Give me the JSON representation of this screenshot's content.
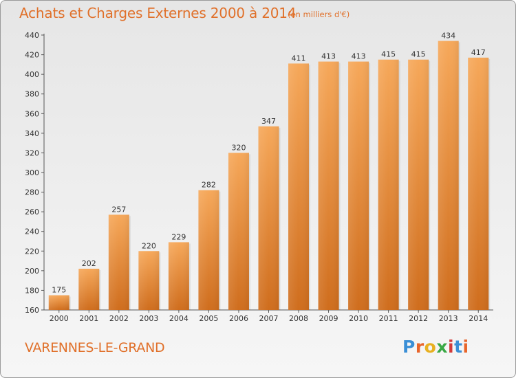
{
  "header": {
    "title": "Achats et Charges Externes 2000 à 2014",
    "subtitle": "(en milliers d'€)"
  },
  "footer": {
    "location": "VARENNES-LE-GRAND",
    "logo_text": "Proxiti"
  },
  "colors": {
    "text_accent": "#e0702a",
    "bar_top": "#f6a85a",
    "bar_bottom": "#cf6d1d"
  },
  "chart_data": {
    "type": "bar",
    "title": "Achats et Charges Externes 2000 à 2014",
    "subtitle": "(en milliers d'€)",
    "xlabel": "",
    "ylabel": "",
    "categories": [
      "2000",
      "2001",
      "2002",
      "2003",
      "2004",
      "2005",
      "2006",
      "2007",
      "2008",
      "2009",
      "2010",
      "2011",
      "2012",
      "2013",
      "2014"
    ],
    "values": [
      175,
      202,
      257,
      220,
      229,
      282,
      320,
      347,
      411,
      413,
      413,
      415,
      415,
      434,
      417
    ],
    "ylim": [
      160,
      440
    ],
    "yticks": [
      160,
      180,
      200,
      220,
      240,
      260,
      280,
      300,
      320,
      340,
      360,
      380,
      400,
      420,
      440
    ],
    "grid": false,
    "legend": "none"
  }
}
